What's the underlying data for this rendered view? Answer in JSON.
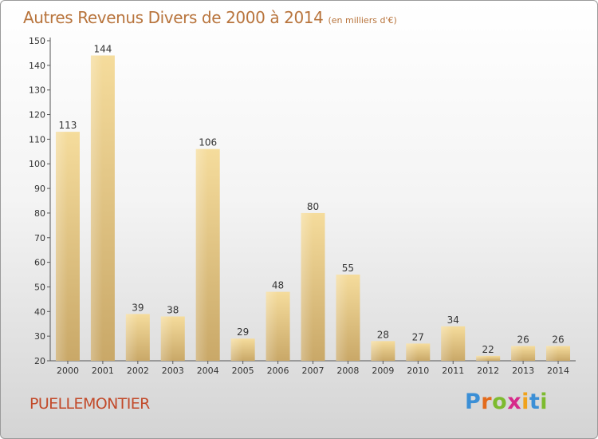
{
  "title": "Autres Revenus Divers de 2000 à 2014",
  "subtitle": "(en milliers d'€)",
  "commune": "PUELLEMONTIER",
  "logo": {
    "letters": [
      "P",
      "r",
      "o",
      "x",
      "i",
      "t",
      "i"
    ],
    "colors": [
      "#3b8fd6",
      "#e36b1c",
      "#7dbb2f",
      "#d62a8a",
      "#f0a21c",
      "#3b8fd6",
      "#7dbb2f"
    ]
  },
  "chart_data": {
    "type": "bar",
    "title": "Autres Revenus Divers de 2000 à 2014",
    "subtitle": "(en milliers d'€)",
    "categories": [
      "2000",
      "2001",
      "2002",
      "2003",
      "2004",
      "2005",
      "2006",
      "2007",
      "2008",
      "2009",
      "2010",
      "2011",
      "2012",
      "2013",
      "2014"
    ],
    "values": [
      113,
      144,
      39,
      38,
      106,
      29,
      48,
      80,
      55,
      28,
      27,
      34,
      22,
      26,
      26
    ],
    "ylim": [
      20,
      150
    ],
    "yticks": [
      20,
      30,
      40,
      50,
      60,
      70,
      80,
      90,
      100,
      110,
      120,
      130,
      140,
      150
    ],
    "grid": false,
    "bar_color": "#e8c87e"
  }
}
